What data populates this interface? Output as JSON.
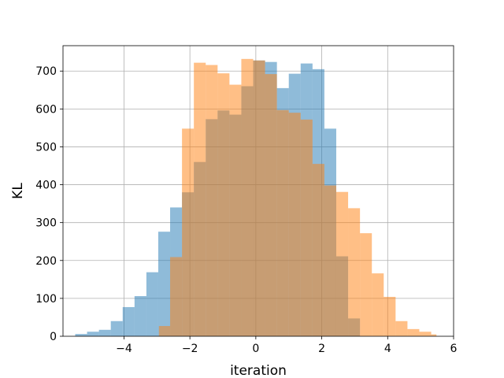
{
  "chart_data": {
    "type": "histogram",
    "title": "",
    "xlabel": "iteration",
    "ylabel": "KL",
    "xlim": [
      -5.85,
      6.0
    ],
    "ylim": [
      0,
      767
    ],
    "xticks": [
      -4,
      -2,
      0,
      2,
      4,
      6
    ],
    "xtick_labels": [
      "−4",
      "−2",
      "0",
      "2",
      "4",
      "6"
    ],
    "yticks": [
      0,
      100,
      200,
      300,
      400,
      500,
      600,
      700
    ],
    "ytick_labels": [
      "0",
      "100",
      "200",
      "300",
      "400",
      "500",
      "600",
      "700"
    ],
    "grid": true,
    "alpha": 0.5,
    "series": [
      {
        "color": "#1f77b4",
        "bins": [
          [
            -5.48,
            -5.12,
            6
          ],
          [
            -5.12,
            -4.76,
            12
          ],
          [
            -4.76,
            -4.4,
            17
          ],
          [
            -4.4,
            -4.04,
            40
          ],
          [
            -4.04,
            -3.68,
            77
          ],
          [
            -3.68,
            -3.32,
            106
          ],
          [
            -3.32,
            -2.96,
            169
          ],
          [
            -2.96,
            -2.6,
            276
          ],
          [
            -2.6,
            -2.24,
            340
          ],
          [
            -2.24,
            -1.88,
            380
          ],
          [
            -1.88,
            -1.52,
            460
          ],
          [
            -1.52,
            -1.16,
            573
          ],
          [
            -1.16,
            -0.8,
            596
          ],
          [
            -0.8,
            -0.44,
            585
          ],
          [
            -0.44,
            -0.08,
            660
          ],
          [
            -0.08,
            0.28,
            728
          ],
          [
            0.28,
            0.64,
            724
          ],
          [
            0.64,
            1.0,
            655
          ],
          [
            1.0,
            1.36,
            693
          ],
          [
            1.36,
            1.72,
            720
          ],
          [
            1.72,
            2.08,
            705
          ],
          [
            2.08,
            2.44,
            548
          ],
          [
            2.44,
            2.8,
            211
          ],
          [
            2.8,
            3.16,
            47
          ]
        ]
      },
      {
        "color": "#ff7f0e",
        "bins": [
          [
            -2.94,
            -2.6,
            27
          ],
          [
            -2.6,
            -2.24,
            209
          ],
          [
            -2.24,
            -1.88,
            548
          ],
          [
            -1.88,
            -1.52,
            722
          ],
          [
            -1.52,
            -1.16,
            716
          ],
          [
            -1.16,
            -0.8,
            694
          ],
          [
            -0.8,
            -0.44,
            664
          ],
          [
            -0.44,
            -0.08,
            732
          ],
          [
            -0.08,
            0.28,
            728
          ],
          [
            0.28,
            0.64,
            692
          ],
          [
            0.64,
            1.0,
            597
          ],
          [
            1.0,
            1.36,
            590
          ],
          [
            1.36,
            1.72,
            572
          ],
          [
            1.72,
            2.08,
            455
          ],
          [
            2.08,
            2.44,
            398
          ],
          [
            2.44,
            2.8,
            381
          ],
          [
            2.8,
            3.16,
            338
          ],
          [
            3.16,
            3.52,
            272
          ],
          [
            3.52,
            3.88,
            166
          ],
          [
            3.88,
            4.24,
            104
          ],
          [
            4.24,
            4.6,
            40
          ],
          [
            4.6,
            4.96,
            19
          ],
          [
            4.96,
            5.32,
            12
          ],
          [
            5.32,
            5.48,
            5
          ]
        ]
      }
    ]
  }
}
